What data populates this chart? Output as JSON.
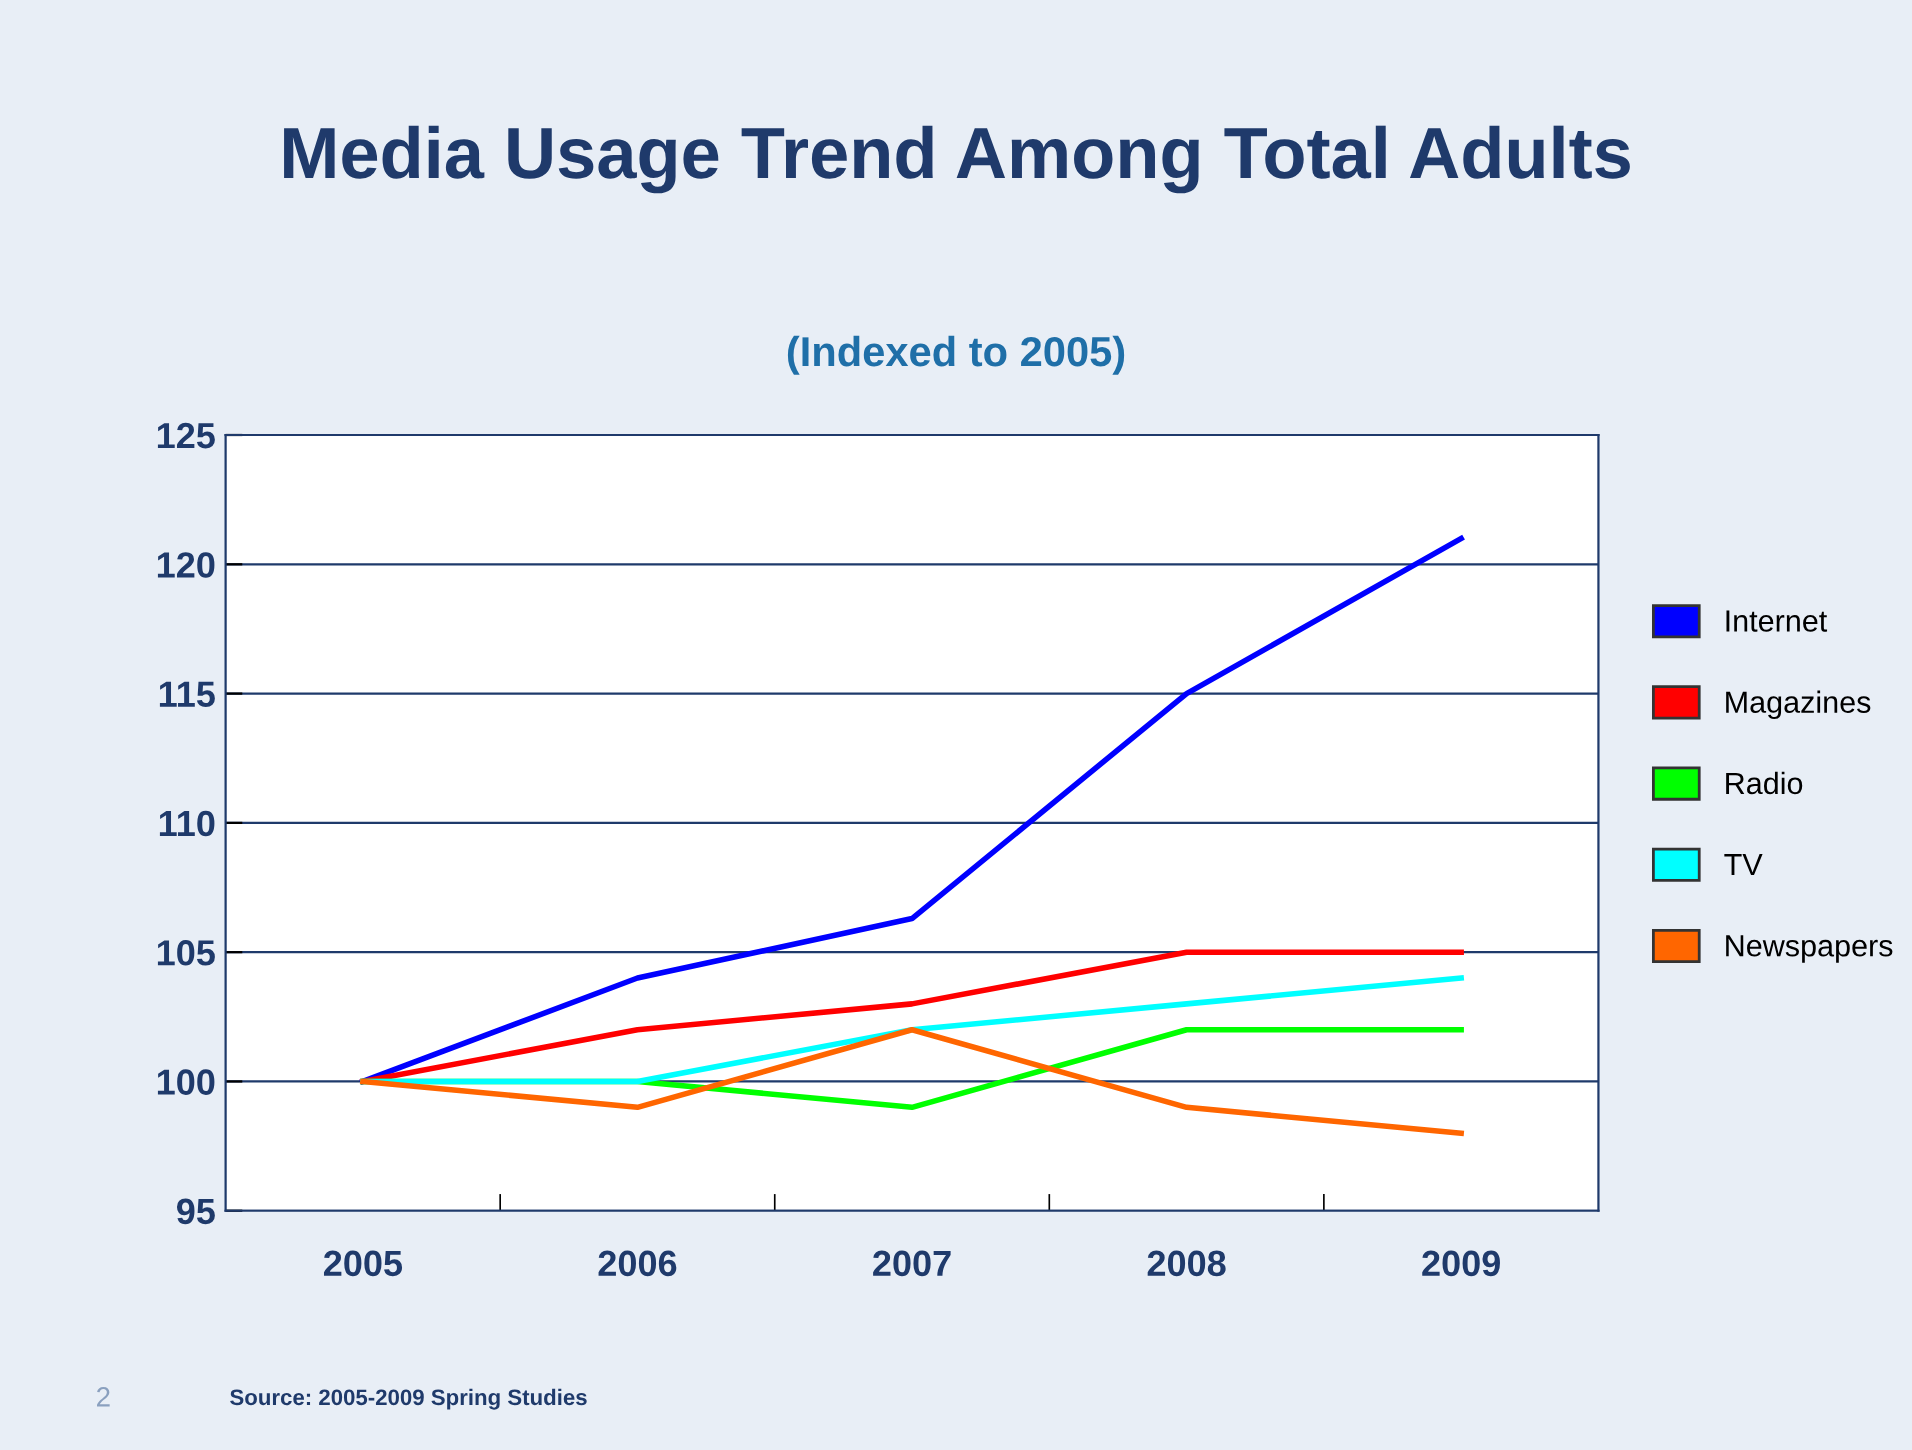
{
  "chart_data": {
    "type": "line",
    "title": "Media Usage Trend Among Total Adults",
    "subtitle": "(Indexed to 2005)",
    "categories": [
      "2005",
      "2006",
      "2007",
      "2008",
      "2009"
    ],
    "series": [
      {
        "name": "Internet",
        "color": "#0000ff",
        "values": [
          100,
          104,
          106.3,
          115,
          121
        ]
      },
      {
        "name": "Magazines",
        "color": "#ff0000",
        "values": [
          100,
          102,
          103,
          105,
          105
        ]
      },
      {
        "name": "Radio",
        "color": "#00ff00",
        "values": [
          100,
          100,
          99,
          102,
          102
        ]
      },
      {
        "name": "TV",
        "color": "#00ffff",
        "values": [
          100,
          100,
          102,
          103,
          104
        ]
      },
      {
        "name": "Newspapers",
        "color": "#ff6600",
        "values": [
          100,
          99,
          102,
          99,
          98
        ]
      }
    ],
    "ylim": [
      95,
      125
    ],
    "yticks": [
      95,
      100,
      105,
      110,
      115,
      120,
      125
    ],
    "grid": "y",
    "legend": "right",
    "marker": "none",
    "line_style": "solid",
    "annotations": [
      "Source: 2005-2009 Spring Studies",
      "2"
    ]
  }
}
